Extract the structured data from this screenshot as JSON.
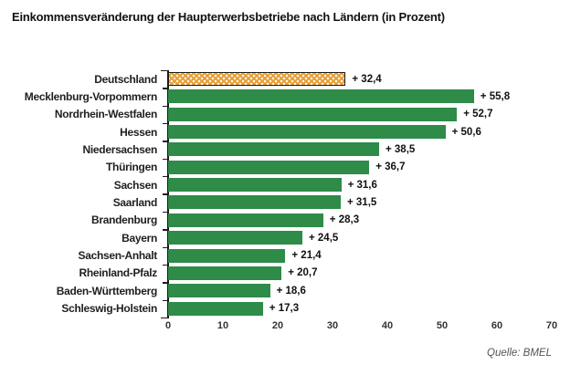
{
  "chart_data": {
    "type": "bar",
    "orientation": "horizontal",
    "title": "Einkommensveränderung der Haupterwerbsbetriebe nach Ländern (in Prozent)",
    "categories": [
      "Deutschland",
      "Mecklenburg-Vorpommern",
      "Nordrhein-Westfalen",
      "Hessen",
      "Niedersachsen",
      "Thüringen",
      "Sachsen",
      "Saarland",
      "Brandenburg",
      "Bayern",
      "Sachsen-Anhalt",
      "Rheinland-Pfalz",
      "Baden-Württemberg",
      "Schleswig-Holstein"
    ],
    "values": [
      32.4,
      55.8,
      52.7,
      50.6,
      38.5,
      36.7,
      31.6,
      31.5,
      28.3,
      24.5,
      21.4,
      20.7,
      18.6,
      17.3
    ],
    "value_labels": [
      "+ 32,4",
      "+ 55,8",
      "+ 52,7",
      "+ 50,6",
      "+ 38,5",
      "+ 36,7",
      "+ 31,6",
      "+ 31,5",
      "+ 28,3",
      "+ 24,5",
      "+ 21,4",
      "+ 20,7",
      "+ 18,6",
      "+ 17,3"
    ],
    "highlight_index": 0,
    "xlim": [
      0,
      70
    ],
    "x_ticks": [
      0,
      10,
      20,
      30,
      40,
      50,
      60,
      70
    ],
    "grid": false,
    "legend": "none",
    "source": "Quelle: BMEL",
    "colors": {
      "highlight_bar_fill": "#E8A23C",
      "highlight_bar_dots": "#FFFFFF",
      "state_bar_green": "#2E8B48",
      "axis": "#1A1A1A",
      "title_text": "#111111",
      "label_text": "#1F1F1F",
      "tick_text": "#333333",
      "source_text": "#555555"
    }
  }
}
